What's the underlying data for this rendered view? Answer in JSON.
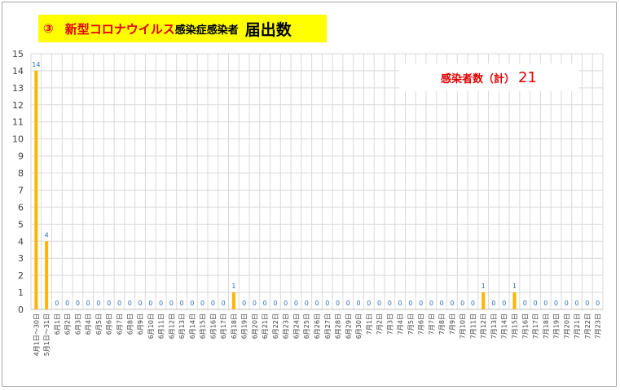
{
  "title": {
    "number": "③",
    "red_text": "新型コロナウイルス",
    "black_text": "感染症感染者",
    "big_text": "届出数"
  },
  "total": {
    "label": "感染者数（計）",
    "value": "21"
  },
  "colors": {
    "bar": "#ffb400",
    "label": "#2f6fbf",
    "title_bg": "#ffff00",
    "accent": "#e00000",
    "grid": "#d9d9d9"
  },
  "chart_data": {
    "type": "bar",
    "ylim": [
      0,
      15
    ],
    "yticks": [
      0,
      1,
      2,
      3,
      4,
      5,
      6,
      7,
      8,
      9,
      10,
      11,
      12,
      13,
      14,
      15
    ],
    "grid": true,
    "categories": [
      "4月1日～30日",
      "5月1日～31日",
      "6月1日",
      "6月2日",
      "6月3日",
      "6月4日",
      "6月5日",
      "6月6日",
      "6月7日",
      "6月8日",
      "6月9日",
      "6月10日",
      "6月11日",
      "6月12日",
      "6月13日",
      "6月14日",
      "6月15日",
      "6月16日",
      "6月17日",
      "6月18日",
      "6月19日",
      "6月20日",
      "6月21日",
      "6月22日",
      "6月23日",
      "6月24日",
      "6月25日",
      "6月26日",
      "6月27日",
      "6月28日",
      "6月29日",
      "6月30日",
      "7月1日",
      "7月2日",
      "7月3日",
      "7月4日",
      "7月5日",
      "7月6日",
      "7月7日",
      "7月8日",
      "7月9日",
      "7月10日",
      "7月11日",
      "7月12日",
      "7月13日",
      "7月14日",
      "7月15日",
      "7月16日",
      "7月17日",
      "7月18日",
      "7月19日",
      "7月20日",
      "7月21日",
      "7月22日",
      "7月23日"
    ],
    "values": [
      14,
      4,
      0,
      0,
      0,
      0,
      0,
      0,
      0,
      0,
      0,
      0,
      0,
      0,
      0,
      0,
      0,
      0,
      0,
      1,
      0,
      0,
      0,
      0,
      0,
      0,
      0,
      0,
      0,
      0,
      0,
      0,
      0,
      0,
      0,
      0,
      0,
      0,
      0,
      0,
      0,
      0,
      0,
      1,
      0,
      0,
      1,
      0,
      0,
      0,
      0,
      0,
      0,
      0,
      0
    ]
  }
}
